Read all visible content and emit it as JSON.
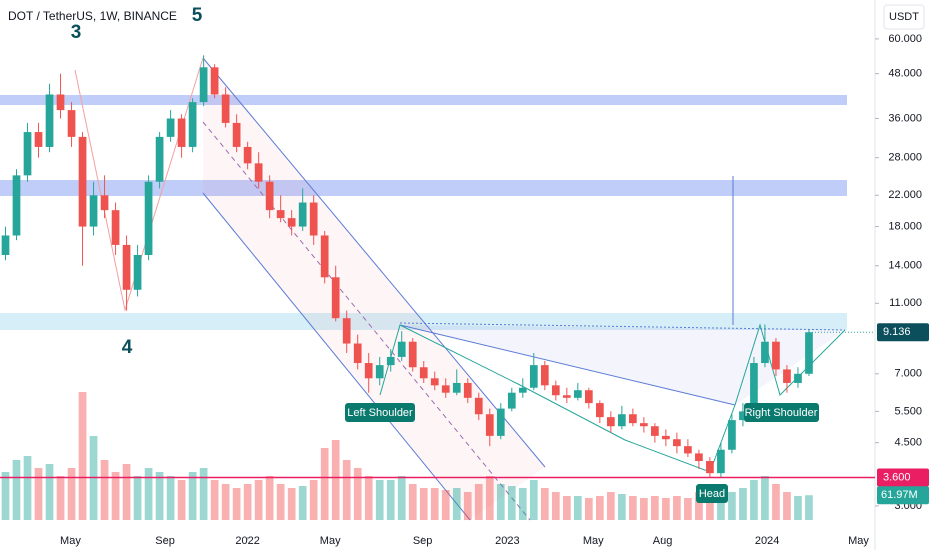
{
  "chart_data": {
    "type": "candlestick",
    "title": "DOT / TetherUS, 1W, BINANCE",
    "currency": "USDT",
    "log_scale": true,
    "up_color": "#26a69a",
    "down_color": "#ef5350",
    "ylim": [
      2.41,
      77
    ],
    "yticks": [
      {
        "value": 60,
        "label": "60.000"
      },
      {
        "value": 48,
        "label": "48.000"
      },
      {
        "value": 36,
        "label": "36.000"
      },
      {
        "value": 28,
        "label": "28.000"
      },
      {
        "value": 22,
        "label": "22.000"
      },
      {
        "value": 18,
        "label": "18.000"
      },
      {
        "value": 14,
        "label": "14.000"
      },
      {
        "value": 11,
        "label": "11.000"
      },
      {
        "value": 7,
        "label": "7.000"
      },
      {
        "value": 5.5,
        "label": "5.500"
      },
      {
        "value": 4.5,
        "label": "4.500"
      },
      {
        "value": 3,
        "label": "3.000"
      }
    ],
    "xlim": [
      -0.5,
      79
    ],
    "xticks": [
      {
        "value": 5.9,
        "label": "May"
      },
      {
        "value": 14.5,
        "label": "Sep"
      },
      {
        "value": 22,
        "label": "2022"
      },
      {
        "value": 29.5,
        "label": "May"
      },
      {
        "value": 37.9,
        "label": "Sep"
      },
      {
        "value": 45.6,
        "label": "2023"
      },
      {
        "value": 53.4,
        "label": "May"
      },
      {
        "value": 59.7,
        "label": "Aug"
      },
      {
        "value": 69.2,
        "label": "2024"
      },
      {
        "value": 77.5,
        "label": "May"
      }
    ],
    "candles": [
      [
        15,
        18,
        14.5,
        17
      ],
      [
        17,
        26,
        16.5,
        25
      ],
      [
        25,
        35,
        24,
        33
      ],
      [
        33,
        35,
        28,
        30
      ],
      [
        30,
        45,
        29,
        42
      ],
      [
        42,
        48,
        36,
        38
      ],
      [
        38,
        40,
        30,
        32
      ],
      [
        32,
        33,
        14,
        18
      ],
      [
        18,
        24,
        17,
        22
      ],
      [
        22,
        25,
        19,
        20
      ],
      [
        20,
        21,
        15,
        16
      ],
      [
        16,
        17,
        10.5,
        12
      ],
      [
        12,
        16,
        11.5,
        15
      ],
      [
        15,
        25,
        14.5,
        24
      ],
      [
        24,
        33,
        23,
        32
      ],
      [
        32,
        38,
        31,
        36
      ],
      [
        36,
        37,
        28,
        30
      ],
      [
        30,
        41,
        29,
        40
      ],
      [
        40,
        54,
        39,
        50
      ],
      [
        50,
        51,
        41,
        42
      ],
      [
        42,
        44,
        34,
        35
      ],
      [
        35,
        37,
        29,
        30
      ],
      [
        30,
        31,
        26,
        27
      ],
      [
        27,
        29,
        23,
        24
      ],
      [
        24,
        25,
        19,
        20
      ],
      [
        20,
        22,
        18.5,
        19
      ],
      [
        19,
        20,
        17,
        18
      ],
      [
        18,
        23,
        17.5,
        21
      ],
      [
        21,
        22,
        16,
        17
      ],
      [
        17,
        17.5,
        12.5,
        13
      ],
      [
        13,
        14,
        9.8,
        10
      ],
      [
        10,
        10.5,
        8,
        8.5
      ],
      [
        8.5,
        9,
        7.2,
        7.5
      ],
      [
        7.5,
        8,
        6.2,
        6.8
      ],
      [
        6.8,
        7.8,
        6.5,
        7.4
      ],
      [
        7.4,
        8.2,
        7.1,
        7.8
      ],
      [
        7.8,
        9.2,
        7.6,
        8.6
      ],
      [
        8.6,
        8.8,
        7.1,
        7.3
      ],
      [
        7.3,
        7.6,
        6.6,
        6.8
      ],
      [
        6.8,
        7.1,
        6.3,
        6.5
      ],
      [
        6.5,
        6.8,
        6.0,
        6.2
      ],
      [
        6.2,
        7.2,
        6.1,
        6.6
      ],
      [
        6.6,
        6.8,
        5.8,
        6.0
      ],
      [
        6.0,
        6.2,
        5.2,
        5.4
      ],
      [
        5.4,
        5.6,
        4.4,
        4.7
      ],
      [
        4.7,
        5.8,
        4.6,
        5.6
      ],
      [
        5.6,
        6.4,
        5.5,
        6.2
      ],
      [
        6.2,
        6.8,
        6.0,
        6.4
      ],
      [
        6.4,
        8.0,
        6.3,
        7.4
      ],
      [
        7.4,
        7.6,
        6.3,
        6.5
      ],
      [
        6.5,
        6.7,
        5.9,
        6.1
      ],
      [
        6.1,
        6.4,
        5.8,
        6.0
      ],
      [
        6.0,
        6.6,
        5.9,
        6.3
      ],
      [
        6.3,
        6.4,
        5.6,
        5.8
      ],
      [
        5.8,
        5.9,
        5.1,
        5.3
      ],
      [
        5.3,
        5.5,
        4.8,
        5.0
      ],
      [
        5.0,
        5.7,
        4.9,
        5.4
      ],
      [
        5.4,
        5.6,
        5.0,
        5.1
      ],
      [
        5.1,
        5.3,
        4.8,
        5.0
      ],
      [
        5.0,
        5.1,
        4.5,
        4.7
      ],
      [
        4.7,
        4.9,
        4.4,
        4.6
      ],
      [
        4.6,
        4.8,
        4.2,
        4.4
      ],
      [
        4.4,
        4.6,
        4.1,
        4.2
      ],
      [
        4.2,
        4.3,
        3.8,
        4.0
      ],
      [
        4.0,
        4.1,
        3.6,
        3.7
      ],
      [
        3.7,
        4.5,
        3.6,
        4.3
      ],
      [
        4.3,
        5.4,
        4.2,
        5.2
      ],
      [
        5.2,
        5.8,
        5.0,
        5.5
      ],
      [
        5.5,
        7.8,
        5.4,
        7.5
      ],
      [
        7.5,
        9.6,
        7.3,
        8.6
      ],
      [
        8.6,
        8.8,
        6.9,
        7.2
      ],
      [
        7.2,
        7.4,
        6.2,
        6.6
      ],
      [
        6.6,
        7.3,
        6.4,
        7.0
      ],
      [
        7.0,
        9.3,
        6.9,
        9.136
      ]
    ],
    "volumes": [
      120,
      150,
      160,
      130,
      140,
      110,
      130,
      320,
      210,
      150,
      120,
      140,
      110,
      130,
      120,
      110,
      100,
      120,
      130,
      100,
      90,
      80,
      90,
      100,
      110,
      90,
      80,
      85,
      100,
      180,
      200,
      150,
      130,
      110,
      100,
      100,
      110,
      90,
      80,
      80,
      75,
      80,
      70,
      90,
      110,
      90,
      85,
      80,
      100,
      80,
      70,
      60,
      60,
      55,
      60,
      70,
      65,
      60,
      55,
      60,
      55,
      60,
      55,
      70,
      90,
      80,
      70,
      80,
      100,
      110,
      90,
      70,
      60,
      61.97
    ],
    "vlim": [
      0,
      350
    ],
    "last_price_label": "9.136",
    "last_volume_label": "61.97M",
    "level": {
      "value": 3.6,
      "label": "3.600",
      "color": "#e91e63"
    },
    "annotations": {
      "wave_3": "3",
      "wave_5": "5",
      "wave_4": "4",
      "left_shoulder": "Left Shoulder",
      "head": "Head",
      "right_shoulder": "Right Shoulder"
    }
  }
}
